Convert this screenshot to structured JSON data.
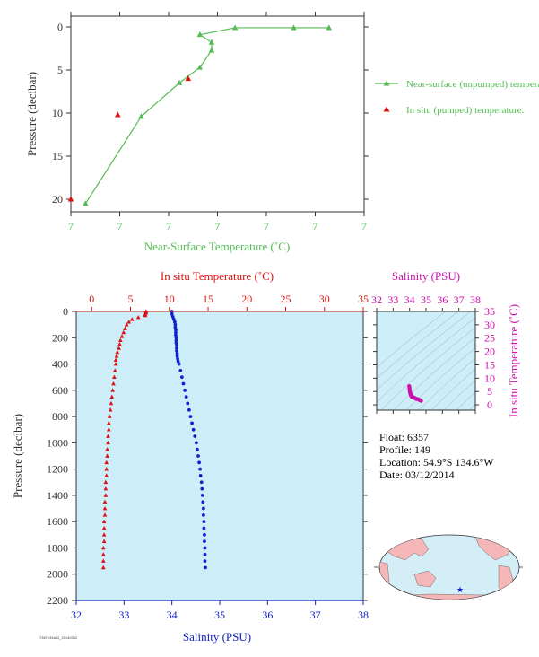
{
  "colors": {
    "green": "#55bb55",
    "red": "#dd1111",
    "blue": "#1122cc",
    "magenta": "#cc11aa",
    "axis": "#333333",
    "plotbg": "#cdeef8",
    "land": "#f4b6b6",
    "ocean": "#d4eef8"
  },
  "float_info": {
    "float": "Float: 6357",
    "profile": "Profile: 149",
    "location": "Location: 54.9°S 134.6°W",
    "date": "Date: 03/12/2014"
  },
  "footer_code": "7357e34a12_20140312",
  "map": {
    "float_marker": "star"
  },
  "chart_data": [
    {
      "name": "near-surface-temperature",
      "type": "line",
      "xlabel": "Near-Surface Temperature (˚C)",
      "ylabel": "Pressure (decibar)",
      "x_tick_labels": [
        "7",
        "7",
        "7",
        "7",
        "7",
        "7",
        "7"
      ],
      "y_ticks": [
        0,
        5,
        10,
        15,
        20
      ],
      "ylim": [
        0,
        22
      ],
      "y_inverted": true,
      "series": [
        {
          "name": "Near-surface (unpumped) temperature.",
          "marker": "triangle",
          "color": "#55bb55",
          "points": [
            {
              "x": 0.05,
              "y": 20.5
            },
            {
              "x": 0.24,
              "y": 10.4
            },
            {
              "x": 0.37,
              "y": 6.5
            },
            {
              "x": 0.44,
              "y": 4.7
            },
            {
              "x": 0.48,
              "y": 2.7
            },
            {
              "x": 0.48,
              "y": 1.8
            },
            {
              "x": 0.44,
              "y": 0.9
            },
            {
              "x": 0.56,
              "y": 0.1
            },
            {
              "x": 0.76,
              "y": 0.1
            },
            {
              "x": 0.88,
              "y": 0.1
            }
          ]
        },
        {
          "name": "In situ (pumped) temperature.",
          "marker": "triangle",
          "color": "#dd1111",
          "points": [
            {
              "x": 0.16,
              "y": 10.2
            },
            {
              "x": 0.4,
              "y": 6.0
            },
            {
              "x": 0.0,
              "y": 20.0
            }
          ]
        }
      ]
    },
    {
      "name": "profile",
      "type": "scatter",
      "ylabel": "Pressure (decibar)",
      "top_xlabel": "In situ Temperature (˚C)",
      "bottom_xlabel": "Salinity (PSU)",
      "temp_ticks": [
        0,
        5,
        10,
        15,
        20,
        25,
        30,
        35
      ],
      "temp_lim": [
        -2,
        35
      ],
      "sal_ticks": [
        32,
        33,
        34,
        35,
        36,
        37,
        38
      ],
      "sal_lim": [
        32,
        38
      ],
      "p_ticks": [
        0,
        200,
        400,
        600,
        800,
        1000,
        1200,
        1400,
        1600,
        1800,
        2000,
        2200
      ],
      "plim": [
        0,
        2200
      ],
      "temperature": {
        "color": "#dd1111",
        "marker": "triangle",
        "points": [
          [
            7.0,
            0
          ],
          [
            7.0,
            10
          ],
          [
            6.9,
            20
          ],
          [
            6.9,
            30
          ],
          [
            6.0,
            45
          ],
          [
            5.2,
            60
          ],
          [
            4.8,
            80
          ],
          [
            4.5,
            100
          ],
          [
            4.3,
            130
          ],
          [
            4.1,
            160
          ],
          [
            3.9,
            190
          ],
          [
            3.7,
            220
          ],
          [
            3.6,
            250
          ],
          [
            3.5,
            280
          ],
          [
            3.3,
            310
          ],
          [
            3.2,
            340
          ],
          [
            3.1,
            370
          ],
          [
            3.1,
            400
          ],
          [
            3.0,
            450
          ],
          [
            2.9,
            500
          ],
          [
            2.8,
            550
          ],
          [
            2.7,
            600
          ],
          [
            2.6,
            650
          ],
          [
            2.5,
            700
          ],
          [
            2.4,
            750
          ],
          [
            2.3,
            800
          ],
          [
            2.2,
            850
          ],
          [
            2.2,
            900
          ],
          [
            2.1,
            950
          ],
          [
            2.1,
            1000
          ],
          [
            2.0,
            1050
          ],
          [
            2.0,
            1100
          ],
          [
            1.9,
            1150
          ],
          [
            1.9,
            1200
          ],
          [
            1.9,
            1250
          ],
          [
            1.8,
            1300
          ],
          [
            1.8,
            1350
          ],
          [
            1.8,
            1400
          ],
          [
            1.7,
            1450
          ],
          [
            1.7,
            1500
          ],
          [
            1.7,
            1550
          ],
          [
            1.6,
            1600
          ],
          [
            1.6,
            1650
          ],
          [
            1.6,
            1700
          ],
          [
            1.6,
            1750
          ],
          [
            1.5,
            1800
          ],
          [
            1.5,
            1850
          ],
          [
            1.5,
            1900
          ],
          [
            1.5,
            1950
          ]
        ]
      },
      "salinity": {
        "color": "#1122cc",
        "marker": "circle",
        "points": [
          [
            34.0,
            0
          ],
          [
            34.0,
            20
          ],
          [
            34.02,
            40
          ],
          [
            34.04,
            60
          ],
          [
            34.06,
            80
          ],
          [
            34.07,
            100
          ],
          [
            34.07,
            120
          ],
          [
            34.08,
            140
          ],
          [
            34.08,
            160
          ],
          [
            34.08,
            180
          ],
          [
            34.09,
            200
          ],
          [
            34.09,
            220
          ],
          [
            34.09,
            240
          ],
          [
            34.1,
            260
          ],
          [
            34.1,
            280
          ],
          [
            34.1,
            300
          ],
          [
            34.11,
            320
          ],
          [
            34.11,
            340
          ],
          [
            34.12,
            360
          ],
          [
            34.13,
            380
          ],
          [
            34.15,
            400
          ],
          [
            34.18,
            450
          ],
          [
            34.21,
            500
          ],
          [
            34.24,
            550
          ],
          [
            34.27,
            600
          ],
          [
            34.3,
            650
          ],
          [
            34.33,
            700
          ],
          [
            34.36,
            750
          ],
          [
            34.39,
            800
          ],
          [
            34.42,
            850
          ],
          [
            34.45,
            900
          ],
          [
            34.48,
            950
          ],
          [
            34.51,
            1000
          ],
          [
            34.53,
            1050
          ],
          [
            34.55,
            1100
          ],
          [
            34.57,
            1150
          ],
          [
            34.59,
            1200
          ],
          [
            34.6,
            1250
          ],
          [
            34.62,
            1300
          ],
          [
            34.63,
            1350
          ],
          [
            34.64,
            1400
          ],
          [
            34.65,
            1450
          ],
          [
            34.66,
            1500
          ],
          [
            34.66,
            1550
          ],
          [
            34.67,
            1600
          ],
          [
            34.67,
            1650
          ],
          [
            34.68,
            1700
          ],
          [
            34.68,
            1750
          ],
          [
            34.69,
            1800
          ],
          [
            34.69,
            1850
          ],
          [
            34.69,
            1900
          ],
          [
            34.7,
            1950
          ]
        ]
      }
    },
    {
      "name": "ts-diagram",
      "type": "scatter",
      "top_xlabel": "Salinity (PSU)",
      "ylabel": "In situ Temperature (˚C)",
      "sal_ticks": [
        32,
        33,
        34,
        35,
        36,
        37,
        38
      ],
      "sal_lim": [
        32,
        38
      ],
      "temp_ticks": [
        0,
        5,
        10,
        15,
        20,
        25,
        30,
        35
      ],
      "temp_lim": [
        -2,
        35
      ],
      "color": "#cc11aa",
      "points": [
        [
          33.98,
          7.0
        ],
        [
          33.99,
          6.5
        ],
        [
          34.0,
          6.0
        ],
        [
          34.01,
          5.5
        ],
        [
          34.02,
          5.0
        ],
        [
          34.03,
          4.6
        ],
        [
          34.05,
          4.3
        ],
        [
          34.07,
          4.0
        ],
        [
          34.08,
          3.8
        ],
        [
          34.09,
          3.6
        ],
        [
          34.1,
          3.5
        ],
        [
          34.11,
          3.3
        ],
        [
          34.12,
          3.1
        ],
        [
          34.15,
          3.0
        ],
        [
          34.2,
          2.9
        ],
        [
          34.25,
          2.8
        ],
        [
          34.3,
          2.6
        ],
        [
          34.35,
          2.4
        ],
        [
          34.4,
          2.3
        ],
        [
          34.45,
          2.2
        ],
        [
          34.5,
          2.1
        ],
        [
          34.55,
          2.0
        ],
        [
          34.6,
          1.8
        ],
        [
          34.65,
          1.7
        ],
        [
          34.7,
          1.5
        ]
      ]
    }
  ]
}
